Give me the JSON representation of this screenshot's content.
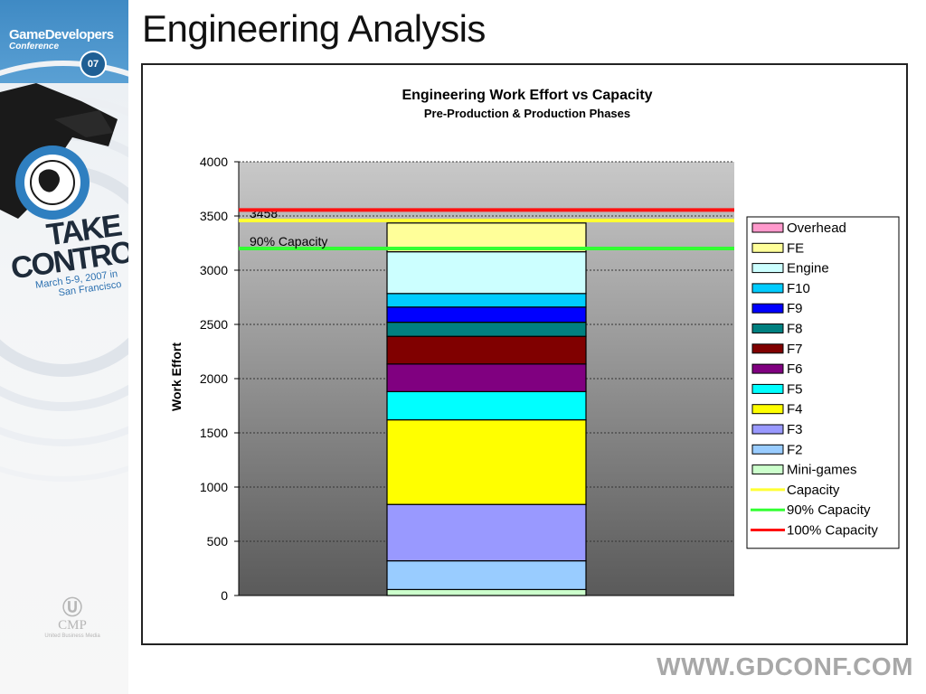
{
  "slide": {
    "title": "Engineering Analysis",
    "footer_url": "WWW.GDCONF.COM"
  },
  "sidebar": {
    "logo_line1": "GameDevelopers",
    "logo_line2": "Conference",
    "logo_year": "07",
    "tagline_1": "TAKE",
    "tagline_2": "CONTROL",
    "dates": "March 5-9, 2007 in",
    "location": "San Francisco",
    "sponsor": "CMP",
    "sponsor_sub": "United Business Media"
  },
  "colors": {
    "plot_gradient_top": "#c8c8c8",
    "plot_gradient_bottom": "#5a5a5a"
  },
  "chart_data": {
    "type": "bar",
    "stacked": true,
    "title": "Engineering Work Effort vs Capacity",
    "subtitle": "Pre-Production & Production Phases",
    "xlabel": "",
    "ylabel": "Work Effort",
    "ylim": [
      0,
      4000
    ],
    "yticks": [
      0,
      500,
      1000,
      1500,
      2000,
      2500,
      3000,
      3500,
      4000
    ],
    "grid": true,
    "legend_position": "right",
    "categories": [
      ""
    ],
    "series": [
      {
        "name": "Mini-games",
        "values": [
          55
        ],
        "color": "#ccffcc"
      },
      {
        "name": "F2",
        "values": [
          265
        ],
        "color": "#99ccff"
      },
      {
        "name": "F3",
        "values": [
          520
        ],
        "color": "#9999ff"
      },
      {
        "name": "F4",
        "values": [
          780
        ],
        "color": "#ffff00"
      },
      {
        "name": "F5",
        "values": [
          260
        ],
        "color": "#00ffff"
      },
      {
        "name": "F6",
        "values": [
          255
        ],
        "color": "#800080"
      },
      {
        "name": "F7",
        "values": [
          255
        ],
        "color": "#800000"
      },
      {
        "name": "F8",
        "values": [
          130
        ],
        "color": "#008080"
      },
      {
        "name": "F9",
        "values": [
          140
        ],
        "color": "#0000ff"
      },
      {
        "name": "F10",
        "values": [
          125
        ],
        "color": "#00ccff"
      },
      {
        "name": "Engine",
        "values": [
          385
        ],
        "color": "#ccffff"
      },
      {
        "name": "FE",
        "values": [
          265
        ],
        "color": "#ffff99"
      },
      {
        "name": "Overhead",
        "values": [
          0
        ],
        "color": "#ff99cc"
      }
    ],
    "lines": [
      {
        "name": "Capacity",
        "value": 3458,
        "color": "#ffff33",
        "label": "3458"
      },
      {
        "name": "90% Capacity",
        "value": 3200,
        "color": "#33ff33",
        "label": "90% Capacity"
      },
      {
        "name": "100% Capacity",
        "value": 3555,
        "color": "#ff1111"
      }
    ],
    "legend_order": [
      "Overhead",
      "FE",
      "Engine",
      "F10",
      "F9",
      "F8",
      "F7",
      "F6",
      "F5",
      "F4",
      "F3",
      "F2",
      "Mini-games",
      "Capacity",
      "90% Capacity",
      "100% Capacity"
    ]
  }
}
